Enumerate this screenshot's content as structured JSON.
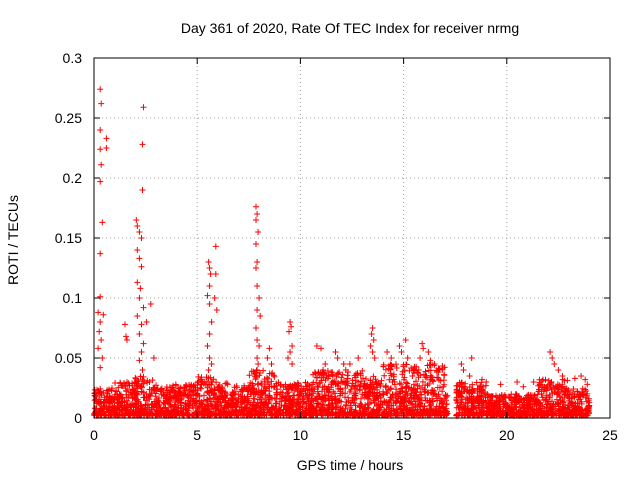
{
  "chart_data": {
    "type": "scatter",
    "title": "Day 361 of 2020, Rate Of TEC Index for receiver nrmg",
    "xlabel": "GPS time / hours",
    "ylabel": "ROTI / TECUs",
    "xlim": [
      0,
      25
    ],
    "ylim": [
      0,
      0.3
    ],
    "xticks": [
      0,
      5,
      10,
      15,
      20,
      25
    ],
    "yticks": [
      0,
      0.05,
      0.1,
      0.15,
      0.2,
      0.25,
      0.3
    ],
    "ytick_labels": [
      "0",
      "0.05",
      "0.1",
      "0.15",
      "0.2",
      "0.25",
      "0.3"
    ],
    "grid": true,
    "marker": "+",
    "color": "#ff0000",
    "series": [
      {
        "name": "ROTI",
        "points": [
          [
            0.3,
            0.274
          ],
          [
            0.35,
            0.262
          ],
          [
            0.3,
            0.24
          ],
          [
            0.6,
            0.233
          ],
          [
            0.6,
            0.225
          ],
          [
            0.3,
            0.224
          ],
          [
            0.35,
            0.211
          ],
          [
            0.3,
            0.197
          ],
          [
            0.4,
            0.163
          ],
          [
            0.3,
            0.137
          ],
          [
            0.3,
            0.101
          ],
          [
            0.2,
            0.088
          ],
          [
            0.45,
            0.086
          ],
          [
            0.3,
            0.08
          ],
          [
            0.25,
            0.072
          ],
          [
            0.35,
            0.065
          ],
          [
            0.2,
            0.058
          ],
          [
            0.4,
            0.05
          ],
          [
            0.3,
            0.042
          ],
          [
            2.4,
            0.259
          ],
          [
            2.35,
            0.228
          ],
          [
            2.35,
            0.19
          ],
          [
            2.05,
            0.165
          ],
          [
            2.1,
            0.16
          ],
          [
            2.2,
            0.155
          ],
          [
            2.3,
            0.15
          ],
          [
            2.1,
            0.14
          ],
          [
            2.2,
            0.133
          ],
          [
            2.3,
            0.126
          ],
          [
            2.1,
            0.113
          ],
          [
            2.25,
            0.108
          ],
          [
            2.2,
            0.1
          ],
          [
            2.4,
            0.092
          ],
          [
            2.1,
            0.085
          ],
          [
            2.3,
            0.078
          ],
          [
            2.2,
            0.07
          ],
          [
            2.4,
            0.062
          ],
          [
            2.3,
            0.055
          ],
          [
            2.2,
            0.048
          ],
          [
            2.35,
            0.04
          ],
          [
            1.55,
            0.068
          ],
          [
            1.6,
            0.065
          ],
          [
            1.5,
            0.078
          ],
          [
            2.75,
            0.095
          ],
          [
            2.55,
            0.08
          ],
          [
            2.9,
            0.05
          ],
          [
            5.9,
            0.143
          ],
          [
            5.55,
            0.13
          ],
          [
            5.6,
            0.125
          ],
          [
            5.65,
            0.12
          ],
          [
            5.6,
            0.11
          ],
          [
            5.5,
            0.102
          ],
          [
            5.6,
            0.095
          ],
          [
            5.9,
            0.12
          ],
          [
            5.85,
            0.1
          ],
          [
            5.95,
            0.09
          ],
          [
            5.7,
            0.08
          ],
          [
            5.6,
            0.07
          ],
          [
            5.5,
            0.06
          ],
          [
            5.6,
            0.05
          ],
          [
            5.7,
            0.045
          ],
          [
            5.55,
            0.04
          ],
          [
            7.85,
            0.176
          ],
          [
            7.9,
            0.17
          ],
          [
            7.85,
            0.165
          ],
          [
            7.95,
            0.155
          ],
          [
            7.85,
            0.145
          ],
          [
            7.9,
            0.13
          ],
          [
            7.85,
            0.125
          ],
          [
            7.9,
            0.11
          ],
          [
            8.0,
            0.1
          ],
          [
            7.9,
            0.09
          ],
          [
            8.05,
            0.085
          ],
          [
            7.85,
            0.075
          ],
          [
            7.9,
            0.065
          ],
          [
            8.0,
            0.06
          ],
          [
            7.9,
            0.05
          ],
          [
            7.95,
            0.045
          ],
          [
            7.9,
            0.04
          ],
          [
            8.5,
            0.058
          ],
          [
            8.4,
            0.05
          ],
          [
            8.6,
            0.045
          ],
          [
            9.5,
            0.08
          ],
          [
            9.55,
            0.076
          ],
          [
            9.45,
            0.072
          ],
          [
            9.6,
            0.06
          ],
          [
            9.5,
            0.055
          ],
          [
            9.4,
            0.05
          ],
          [
            9.6,
            0.045
          ],
          [
            10.8,
            0.06
          ],
          [
            11.0,
            0.058
          ],
          [
            11.2,
            0.045
          ],
          [
            11.1,
            0.04
          ],
          [
            11.7,
            0.055
          ],
          [
            11.8,
            0.05
          ],
          [
            12.1,
            0.045
          ],
          [
            12.4,
            0.045
          ],
          [
            12.8,
            0.05
          ],
          [
            12.2,
            0.04
          ],
          [
            13.5,
            0.075
          ],
          [
            13.45,
            0.07
          ],
          [
            13.55,
            0.065
          ],
          [
            13.4,
            0.06
          ],
          [
            13.5,
            0.055
          ],
          [
            13.6,
            0.05
          ],
          [
            14.2,
            0.055
          ],
          [
            14.4,
            0.05
          ],
          [
            14.8,
            0.06
          ],
          [
            14.9,
            0.055
          ],
          [
            15.1,
            0.065
          ],
          [
            15.2,
            0.05
          ],
          [
            15.9,
            0.062
          ],
          [
            15.95,
            0.058
          ],
          [
            15.8,
            0.05
          ],
          [
            16.2,
            0.055
          ],
          [
            16.3,
            0.048
          ],
          [
            16.5,
            0.045
          ],
          [
            16.7,
            0.04
          ],
          [
            17.8,
            0.045
          ],
          [
            17.9,
            0.04
          ],
          [
            18.2,
            0.035
          ],
          [
            18.3,
            0.05
          ],
          [
            18.8,
            0.032
          ],
          [
            19.0,
            0.03
          ],
          [
            19.7,
            0.028
          ],
          [
            20.5,
            0.03
          ],
          [
            20.8,
            0.026
          ],
          [
            21.3,
            0.03
          ],
          [
            21.6,
            0.028
          ],
          [
            22.1,
            0.055
          ],
          [
            22.2,
            0.05
          ],
          [
            22.3,
            0.045
          ],
          [
            22.5,
            0.04
          ],
          [
            22.7,
            0.035
          ],
          [
            23.3,
            0.033
          ],
          [
            23.6,
            0.035
          ],
          [
            23.8,
            0.032
          ],
          [
            23.9,
            0.028
          ]
        ],
        "base_bands": [
          [
            0.0,
            1.0,
            0.025,
            0.002
          ],
          [
            1.0,
            2.0,
            0.03,
            0.002
          ],
          [
            2.0,
            3.0,
            0.035,
            0.002
          ],
          [
            3.0,
            5.0,
            0.028,
            0.002
          ],
          [
            5.0,
            6.0,
            0.035,
            0.002
          ],
          [
            6.0,
            7.5,
            0.03,
            0.002
          ],
          [
            7.5,
            9.0,
            0.04,
            0.002
          ],
          [
            9.0,
            10.5,
            0.03,
            0.002
          ],
          [
            10.5,
            13.0,
            0.04,
            0.002
          ],
          [
            13.0,
            14.0,
            0.035,
            0.002
          ],
          [
            14.0,
            17.0,
            0.045,
            0.002
          ],
          [
            17.0,
            17.5,
            0.02,
            0.002
          ],
          [
            17.5,
            19.0,
            0.03,
            0.002
          ],
          [
            19.0,
            21.5,
            0.02,
            0.002
          ],
          [
            21.5,
            23.0,
            0.032,
            0.002
          ],
          [
            23.0,
            24.0,
            0.025,
            0.002
          ]
        ],
        "gaps": [
          [
            17.15,
            17.55
          ]
        ]
      }
    ]
  }
}
